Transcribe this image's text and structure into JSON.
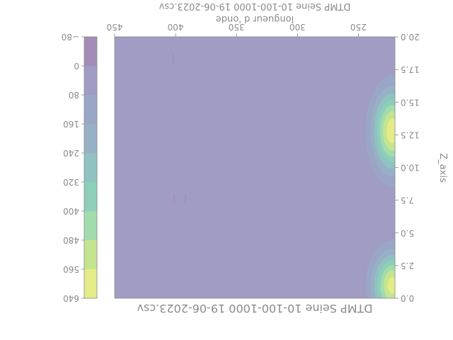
{
  "chart_data": {
    "type": "heatmap",
    "orientation": "rotated-180",
    "title": "DTMP Seine 10-100-1000 19-06-2023.csv",
    "top_title_clipped": "DTMP Seine 10-100-1000 19-06-2023.csv",
    "xlabel": "longueur d 'onde",
    "ylabel": "Z_axis",
    "xlim": [
      220,
      450
    ],
    "ylim": [
      0,
      20
    ],
    "x_ticks": [
      "250",
      "300",
      "350",
      "400",
      "450"
    ],
    "y_ticks": [
      "0.0",
      "2.5",
      "5.0",
      "7.5",
      "10.0",
      "12.5",
      "15.0",
      "17.5",
      "20.0"
    ],
    "colorbar": {
      "levels": [
        -80,
        0,
        80,
        160,
        240,
        320,
        400,
        480,
        560,
        640
      ],
      "tick_labels": [
        "−80",
        "0",
        "80",
        "160",
        "240",
        "320",
        "400",
        "480",
        "560",
        "640"
      ],
      "colors": [
        "#a48cb6",
        "#a09cc4",
        "#9aa6c6",
        "#98b0c6",
        "#8fc2c0",
        "#8dcfb9",
        "#a3dcac",
        "#c4e58f",
        "#e4ec87"
      ]
    },
    "background_level": 0,
    "peaks": [
      {
        "x": 222,
        "y": 1,
        "value": 600,
        "sx": 11,
        "sy": 1.7
      },
      {
        "x": 222,
        "y": 12.8,
        "value": 620,
        "sx": 11,
        "sy": 2.1
      }
    ],
    "spots": [
      {
        "x": 392,
        "y": 7.6,
        "value": -30
      },
      {
        "x": 401,
        "y": 7.6,
        "value": -20
      },
      {
        "x": 402,
        "y": 18.3,
        "value": -30
      }
    ]
  }
}
